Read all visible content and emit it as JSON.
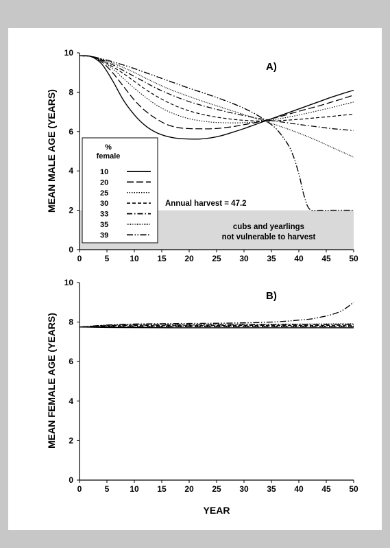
{
  "chart_data": [
    {
      "type": "line",
      "panel_label": "A)",
      "xlabel": "",
      "ylabel": "MEAN MALE AGE (YEARS)",
      "xlim": [
        0,
        50
      ],
      "ylim": [
        0,
        10
      ],
      "x_ticks": [
        "0",
        "5",
        "10",
        "15",
        "20",
        "25",
        "30",
        "35",
        "40",
        "45",
        "50"
      ],
      "y_ticks": [
        "0",
        "2",
        "4",
        "6",
        "8",
        "10"
      ],
      "legend": {
        "title_line1": "%",
        "title_line2": "female",
        "placement": "left"
      },
      "annotation_harvest": "Annual harvest = 47.2",
      "shaded_region": {
        "y_from": 0,
        "y_to": 2,
        "color": "#d9d9d9"
      },
      "shaded_text_line1": "cubs and yearlings",
      "shaded_text_line2": "not vulnerable to harvest",
      "series": [
        {
          "name": "10",
          "dash": "none",
          "width": 1.4,
          "points": [
            [
              0,
              9.85
            ],
            [
              2,
              9.82
            ],
            [
              4,
              9.45
            ],
            [
              6,
              8.6
            ],
            [
              8,
              7.6
            ],
            [
              10,
              6.85
            ],
            [
              12,
              6.3
            ],
            [
              14,
              5.95
            ],
            [
              16,
              5.75
            ],
            [
              18,
              5.65
            ],
            [
              20,
              5.62
            ],
            [
              22,
              5.62
            ],
            [
              24,
              5.68
            ],
            [
              26,
              5.8
            ],
            [
              28,
              5.97
            ],
            [
              30,
              6.15
            ],
            [
              32,
              6.35
            ],
            [
              34,
              6.55
            ],
            [
              36,
              6.75
            ],
            [
              38,
              6.95
            ],
            [
              40,
              7.15
            ],
            [
              42,
              7.35
            ],
            [
              44,
              7.55
            ],
            [
              46,
              7.75
            ],
            [
              48,
              7.93
            ],
            [
              50,
              8.1
            ]
          ]
        },
        {
          "name": "20",
          "dash": "10,4",
          "width": 1.3,
          "points": [
            [
              0,
              9.85
            ],
            [
              2,
              9.82
            ],
            [
              4,
              9.55
            ],
            [
              6,
              9.0
            ],
            [
              8,
              8.3
            ],
            [
              10,
              7.6
            ],
            [
              12,
              7.05
            ],
            [
              14,
              6.65
            ],
            [
              16,
              6.35
            ],
            [
              18,
              6.2
            ],
            [
              20,
              6.15
            ],
            [
              22,
              6.14
            ],
            [
              24,
              6.14
            ],
            [
              26,
              6.18
            ],
            [
              28,
              6.25
            ],
            [
              30,
              6.35
            ],
            [
              32,
              6.45
            ],
            [
              34,
              6.58
            ],
            [
              36,
              6.72
            ],
            [
              38,
              6.87
            ],
            [
              40,
              7.03
            ],
            [
              42,
              7.18
            ],
            [
              44,
              7.33
            ],
            [
              46,
              7.5
            ],
            [
              48,
              7.67
            ],
            [
              50,
              7.85
            ]
          ]
        },
        {
          "name": "25",
          "dash": "1.5,2",
          "width": 1.1,
          "points": [
            [
              0,
              9.85
            ],
            [
              2,
              9.82
            ],
            [
              4,
              9.6
            ],
            [
              6,
              9.2
            ],
            [
              8,
              8.7
            ],
            [
              10,
              8.2
            ],
            [
              12,
              7.75
            ],
            [
              14,
              7.35
            ],
            [
              16,
              7.05
            ],
            [
              18,
              6.82
            ],
            [
              20,
              6.65
            ],
            [
              22,
              6.55
            ],
            [
              24,
              6.48
            ],
            [
              26,
              6.45
            ],
            [
              28,
              6.44
            ],
            [
              30,
              6.45
            ],
            [
              32,
              6.48
            ],
            [
              34,
              6.55
            ],
            [
              36,
              6.63
            ],
            [
              38,
              6.73
            ],
            [
              40,
              6.84
            ],
            [
              42,
              6.96
            ],
            [
              44,
              7.09
            ],
            [
              46,
              7.22
            ],
            [
              48,
              7.36
            ],
            [
              50,
              7.5
            ]
          ]
        },
        {
          "name": "30",
          "dash": "5,3",
          "width": 1.2,
          "points": [
            [
              0,
              9.85
            ],
            [
              2,
              9.82
            ],
            [
              4,
              9.62
            ],
            [
              6,
              9.3
            ],
            [
              8,
              8.95
            ],
            [
              10,
              8.55
            ],
            [
              12,
              8.15
            ],
            [
              14,
              7.8
            ],
            [
              16,
              7.5
            ],
            [
              18,
              7.25
            ],
            [
              20,
              7.05
            ],
            [
              22,
              6.9
            ],
            [
              24,
              6.78
            ],
            [
              26,
              6.69
            ],
            [
              28,
              6.62
            ],
            [
              30,
              6.57
            ],
            [
              32,
              6.54
            ],
            [
              34,
              6.53
            ],
            [
              36,
              6.55
            ],
            [
              38,
              6.58
            ],
            [
              40,
              6.62
            ],
            [
              42,
              6.67
            ],
            [
              44,
              6.72
            ],
            [
              46,
              6.77
            ],
            [
              48,
              6.83
            ],
            [
              50,
              6.88
            ]
          ]
        },
        {
          "name": "33",
          "dash": "8,3,1.5,3",
          "width": 1.3,
          "points": [
            [
              0,
              9.85
            ],
            [
              2,
              9.82
            ],
            [
              4,
              9.65
            ],
            [
              6,
              9.4
            ],
            [
              8,
              9.1
            ],
            [
              10,
              8.8
            ],
            [
              12,
              8.5
            ],
            [
              14,
              8.2
            ],
            [
              16,
              7.95
            ],
            [
              18,
              7.72
            ],
            [
              20,
              7.52
            ],
            [
              22,
              7.35
            ],
            [
              24,
              7.2
            ],
            [
              26,
              7.06
            ],
            [
              28,
              6.93
            ],
            [
              30,
              6.81
            ],
            [
              32,
              6.7
            ],
            [
              34,
              6.6
            ],
            [
              36,
              6.52
            ],
            [
              38,
              6.44
            ],
            [
              40,
              6.36
            ],
            [
              42,
              6.29
            ],
            [
              44,
              6.22
            ],
            [
              46,
              6.15
            ],
            [
              48,
              6.1
            ],
            [
              50,
              6.05
            ]
          ]
        },
        {
          "name": "35",
          "dash": "1,1.5",
          "width": 1.3,
          "points": [
            [
              0,
              9.85
            ],
            [
              2,
              9.82
            ],
            [
              4,
              9.67
            ],
            [
              6,
              9.48
            ],
            [
              8,
              9.25
            ],
            [
              10,
              9.0
            ],
            [
              12,
              8.72
            ],
            [
              14,
              8.45
            ],
            [
              16,
              8.2
            ],
            [
              18,
              7.98
            ],
            [
              20,
              7.78
            ],
            [
              22,
              7.58
            ],
            [
              24,
              7.4
            ],
            [
              26,
              7.22
            ],
            [
              28,
              7.04
            ],
            [
              30,
              6.86
            ],
            [
              32,
              6.68
            ],
            [
              34,
              6.5
            ],
            [
              36,
              6.32
            ],
            [
              38,
              6.13
            ],
            [
              40,
              5.92
            ],
            [
              42,
              5.7
            ],
            [
              44,
              5.46
            ],
            [
              46,
              5.2
            ],
            [
              48,
              4.95
            ],
            [
              50,
              4.7
            ]
          ]
        },
        {
          "name": "39",
          "dash": "9,2.5,1.5,2.5,1.5,2.5",
          "width": 1.4,
          "points": [
            [
              0,
              9.85
            ],
            [
              2,
              9.82
            ],
            [
              4,
              9.7
            ],
            [
              6,
              9.55
            ],
            [
              8,
              9.38
            ],
            [
              10,
              9.2
            ],
            [
              12,
              9.0
            ],
            [
              14,
              8.8
            ],
            [
              16,
              8.6
            ],
            [
              18,
              8.4
            ],
            [
              20,
              8.2
            ],
            [
              22,
              8.02
            ],
            [
              24,
              7.83
            ],
            [
              26,
              7.63
            ],
            [
              28,
              7.42
            ],
            [
              30,
              7.18
            ],
            [
              32,
              6.9
            ],
            [
              34,
              6.55
            ],
            [
              36,
              6.1
            ],
            [
              38,
              5.35
            ],
            [
              39,
              4.75
            ],
            [
              40,
              3.85
            ],
            [
              41,
              2.7
            ],
            [
              42,
              2.05
            ],
            [
              44,
              2.0
            ],
            [
              46,
              2.0
            ],
            [
              48,
              2.0
            ],
            [
              50,
              2.0
            ]
          ]
        }
      ]
    },
    {
      "type": "line",
      "panel_label": "B)",
      "xlabel": "YEAR",
      "ylabel": "MEAN FEMALE AGE (YEARS)",
      "xlim": [
        0,
        50
      ],
      "ylim": [
        0,
        10
      ],
      "x_ticks": [
        "0",
        "5",
        "10",
        "15",
        "20",
        "25",
        "30",
        "35",
        "40",
        "45",
        "50"
      ],
      "y_ticks": [
        "0",
        "2",
        "4",
        "6",
        "8",
        "10"
      ],
      "series": [
        {
          "name": "10",
          "dash": "none",
          "width": 1.4,
          "points": [
            [
              0,
              7.75
            ],
            [
              5,
              7.73
            ],
            [
              10,
              7.72
            ],
            [
              20,
              7.71
            ],
            [
              30,
              7.71
            ],
            [
              40,
              7.71
            ],
            [
              50,
              7.71
            ]
          ]
        },
        {
          "name": "20",
          "dash": "10,4",
          "width": 1.3,
          "points": [
            [
              0,
              7.75
            ],
            [
              5,
              7.76
            ],
            [
              10,
              7.76
            ],
            [
              20,
              7.76
            ],
            [
              30,
              7.76
            ],
            [
              40,
              7.76
            ],
            [
              50,
              7.76
            ]
          ]
        },
        {
          "name": "25",
          "dash": "1.5,2",
          "width": 1.1,
          "points": [
            [
              0,
              7.75
            ],
            [
              5,
              7.78
            ],
            [
              10,
              7.79
            ],
            [
              20,
              7.79
            ],
            [
              30,
              7.8
            ],
            [
              40,
              7.8
            ],
            [
              50,
              7.8
            ]
          ]
        },
        {
          "name": "30",
          "dash": "5,3",
          "width": 1.2,
          "points": [
            [
              0,
              7.75
            ],
            [
              5,
              7.8
            ],
            [
              10,
              7.82
            ],
            [
              20,
              7.82
            ],
            [
              30,
              7.83
            ],
            [
              40,
              7.83
            ],
            [
              50,
              7.84
            ]
          ]
        },
        {
          "name": "33",
          "dash": "8,3,1.5,3",
          "width": 1.3,
          "points": [
            [
              0,
              7.75
            ],
            [
              5,
              7.82
            ],
            [
              10,
              7.85
            ],
            [
              20,
              7.85
            ],
            [
              30,
              7.86
            ],
            [
              40,
              7.87
            ],
            [
              50,
              7.88
            ]
          ]
        },
        {
          "name": "35",
          "dash": "1,1.5",
          "width": 1.3,
          "points": [
            [
              0,
              7.75
            ],
            [
              5,
              7.84
            ],
            [
              10,
              7.87
            ],
            [
              20,
              7.88
            ],
            [
              30,
              7.89
            ],
            [
              40,
              7.9
            ],
            [
              50,
              7.92
            ]
          ]
        },
        {
          "name": "39",
          "dash": "9,2.5,1.5,2.5,1.5,2.5",
          "width": 1.4,
          "points": [
            [
              0,
              7.75
            ],
            [
              5,
              7.85
            ],
            [
              10,
              7.9
            ],
            [
              15,
              7.92
            ],
            [
              20,
              7.93
            ],
            [
              25,
              7.94
            ],
            [
              30,
              7.96
            ],
            [
              35,
              8.0
            ],
            [
              38,
              8.05
            ],
            [
              40,
              8.1
            ],
            [
              42,
              8.15
            ],
            [
              44,
              8.25
            ],
            [
              46,
              8.38
            ],
            [
              48,
              8.6
            ],
            [
              50,
              9.0
            ]
          ]
        }
      ]
    }
  ]
}
